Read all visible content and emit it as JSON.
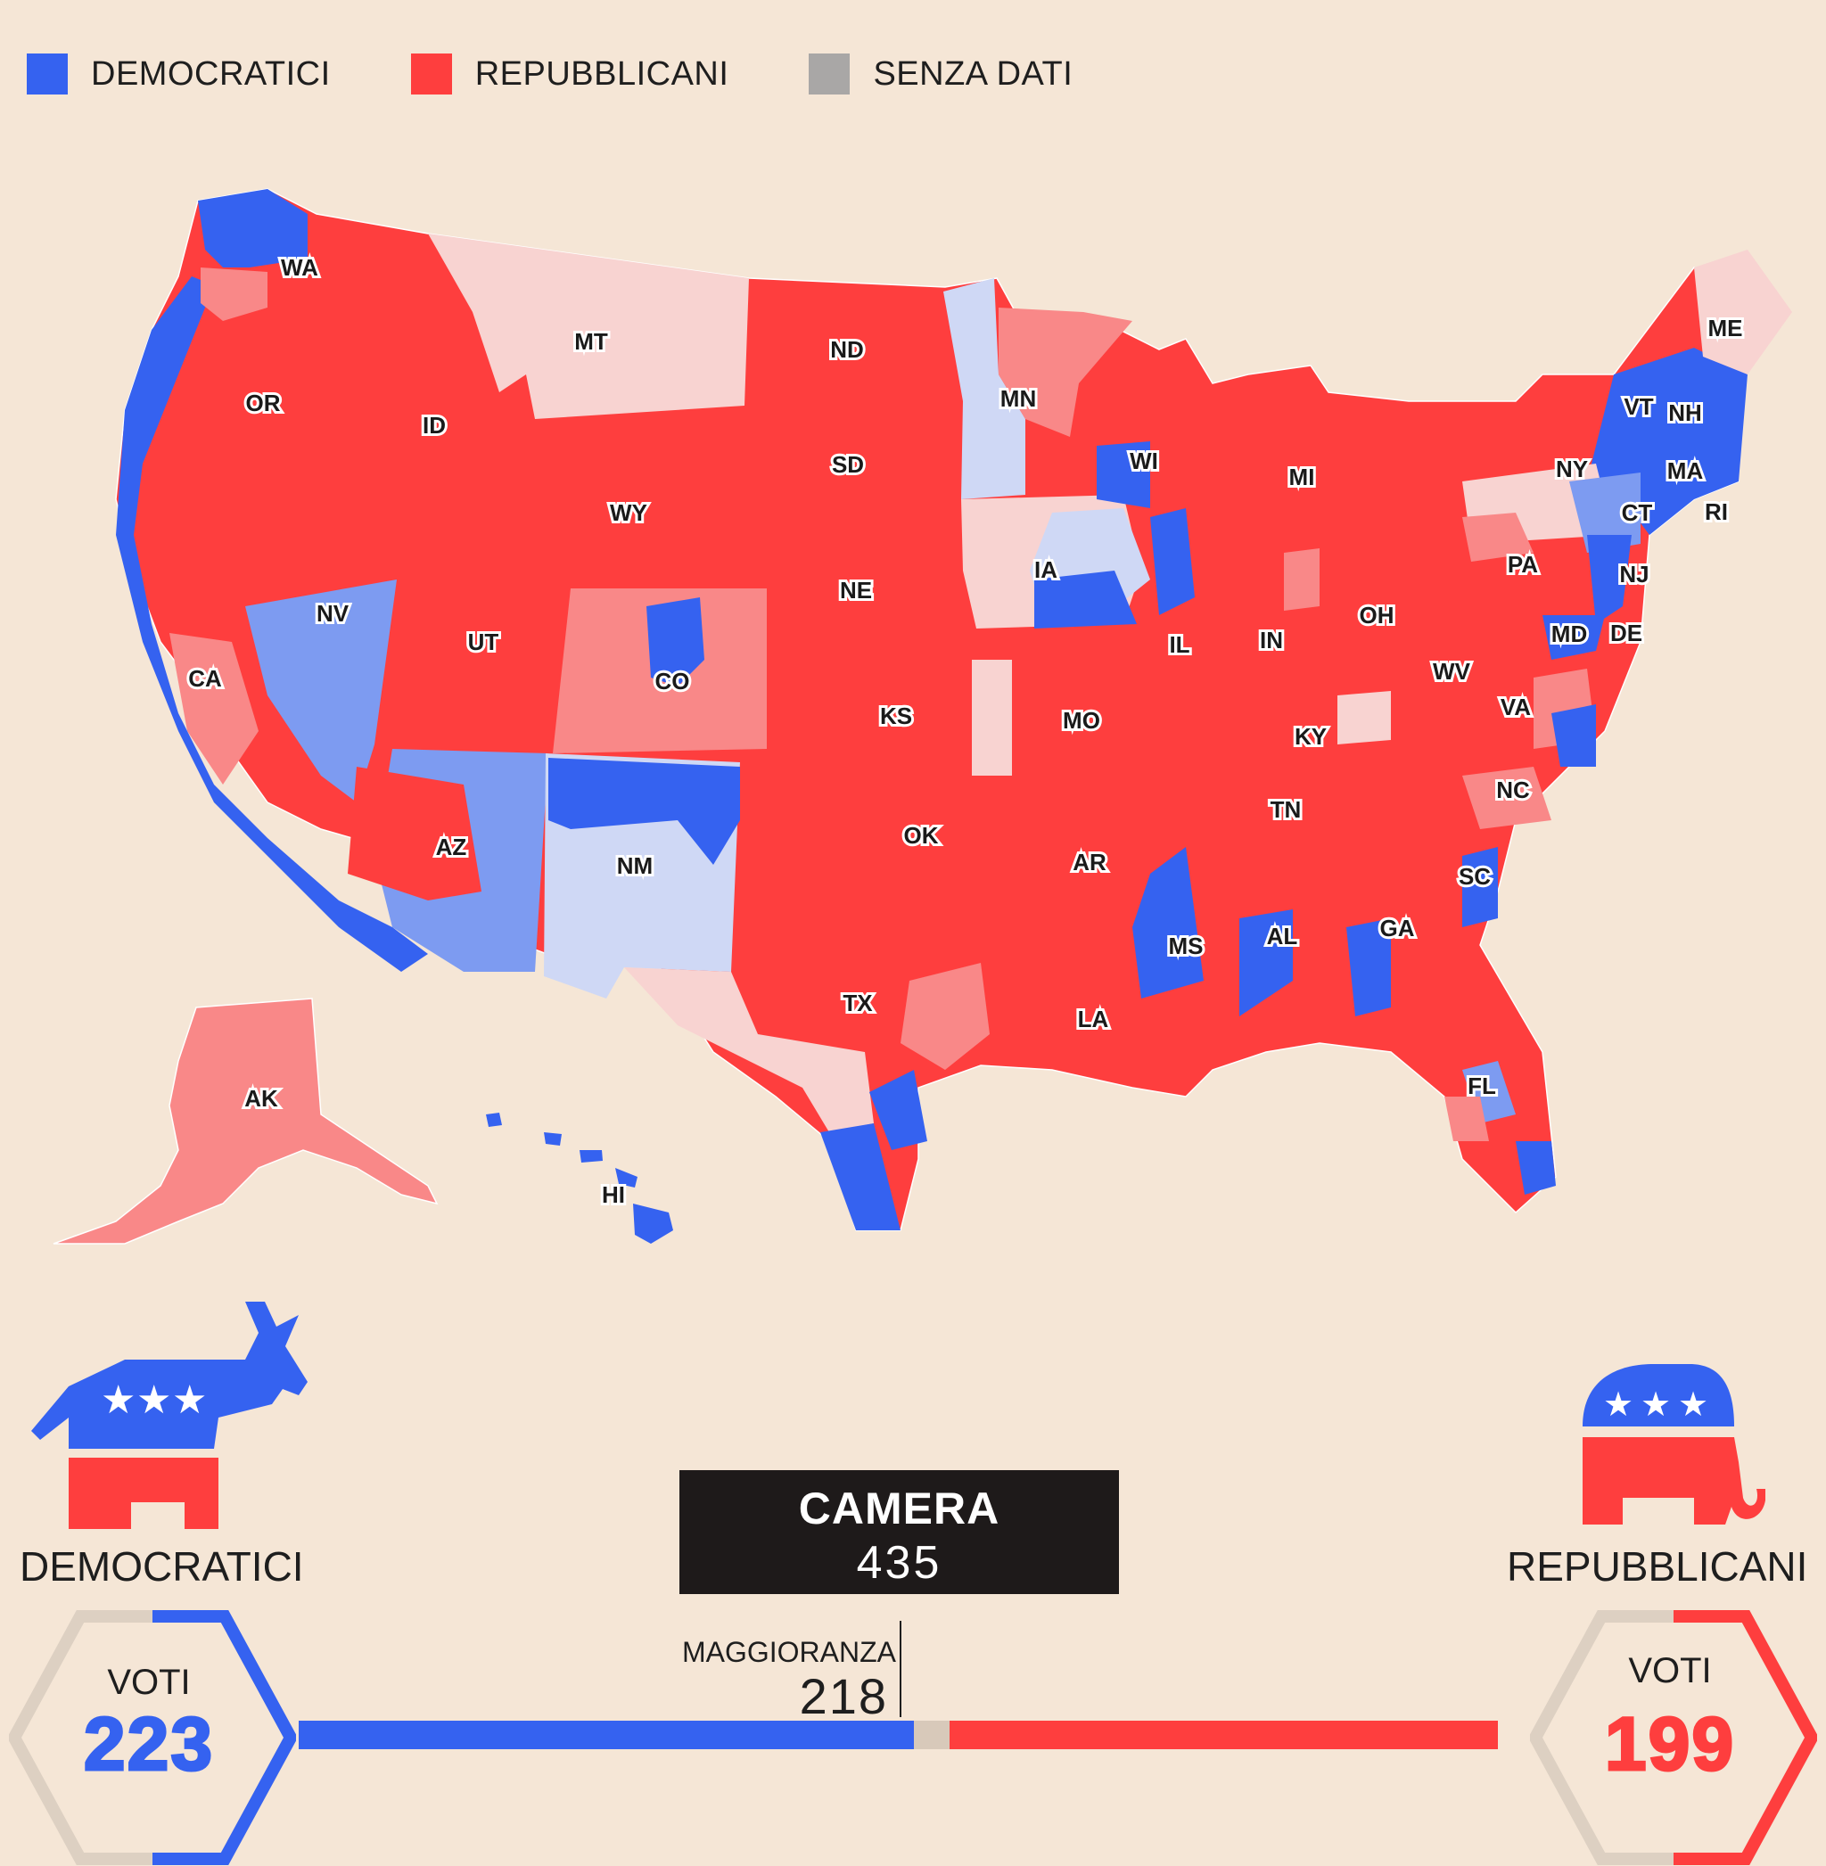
{
  "legend": [
    {
      "label": "DEMOCRATICI",
      "color": "#3562f0"
    },
    {
      "label": "REPUBBLICANI",
      "color": "#fe3e3e"
    },
    {
      "label": "SENZA DATI",
      "color": "#a9a7a6"
    }
  ],
  "map": {
    "state_labels": [
      "WA",
      "MT",
      "ND",
      "ME",
      "OR",
      "ID",
      "MN",
      "VT",
      "NH",
      "SD",
      "WI",
      "MI",
      "NY",
      "MA",
      "WY",
      "CT",
      "RI",
      "IA",
      "PA",
      "NJ",
      "NV",
      "NE",
      "IL",
      "IN",
      "OH",
      "MD",
      "DE",
      "UT",
      "CA",
      "CO",
      "WV",
      "KS",
      "MO",
      "VA",
      "KY",
      "NC",
      "TN",
      "AZ",
      "OK",
      "NM",
      "AR",
      "SC",
      "MS",
      "AL",
      "GA",
      "TX",
      "LA",
      "FL",
      "AK",
      "HI"
    ],
    "colors": {
      "dem": "#3562f0",
      "rep": "#fe3e3e",
      "lean_dem": "#7d9bf1",
      "lean_rep": "#f98888",
      "tossup_dem": "#cfd8f5",
      "tossup_rep": "#f8d3d1"
    }
  },
  "dem": {
    "party": "DEMOCRATICI",
    "votes_label": "VOTI",
    "votes": "223",
    "color": "#3562f0"
  },
  "rep": {
    "party": "REPUBBLICANI",
    "votes_label": "VOTI",
    "votes": "199",
    "color": "#fe3e3e"
  },
  "chamber": {
    "title": "CAMERA",
    "total": "435"
  },
  "majority": {
    "label": "MAGGIORANZA",
    "value": "218"
  },
  "seats": {
    "total": 435,
    "dem": 223,
    "rep": 199,
    "majority": 218
  }
}
